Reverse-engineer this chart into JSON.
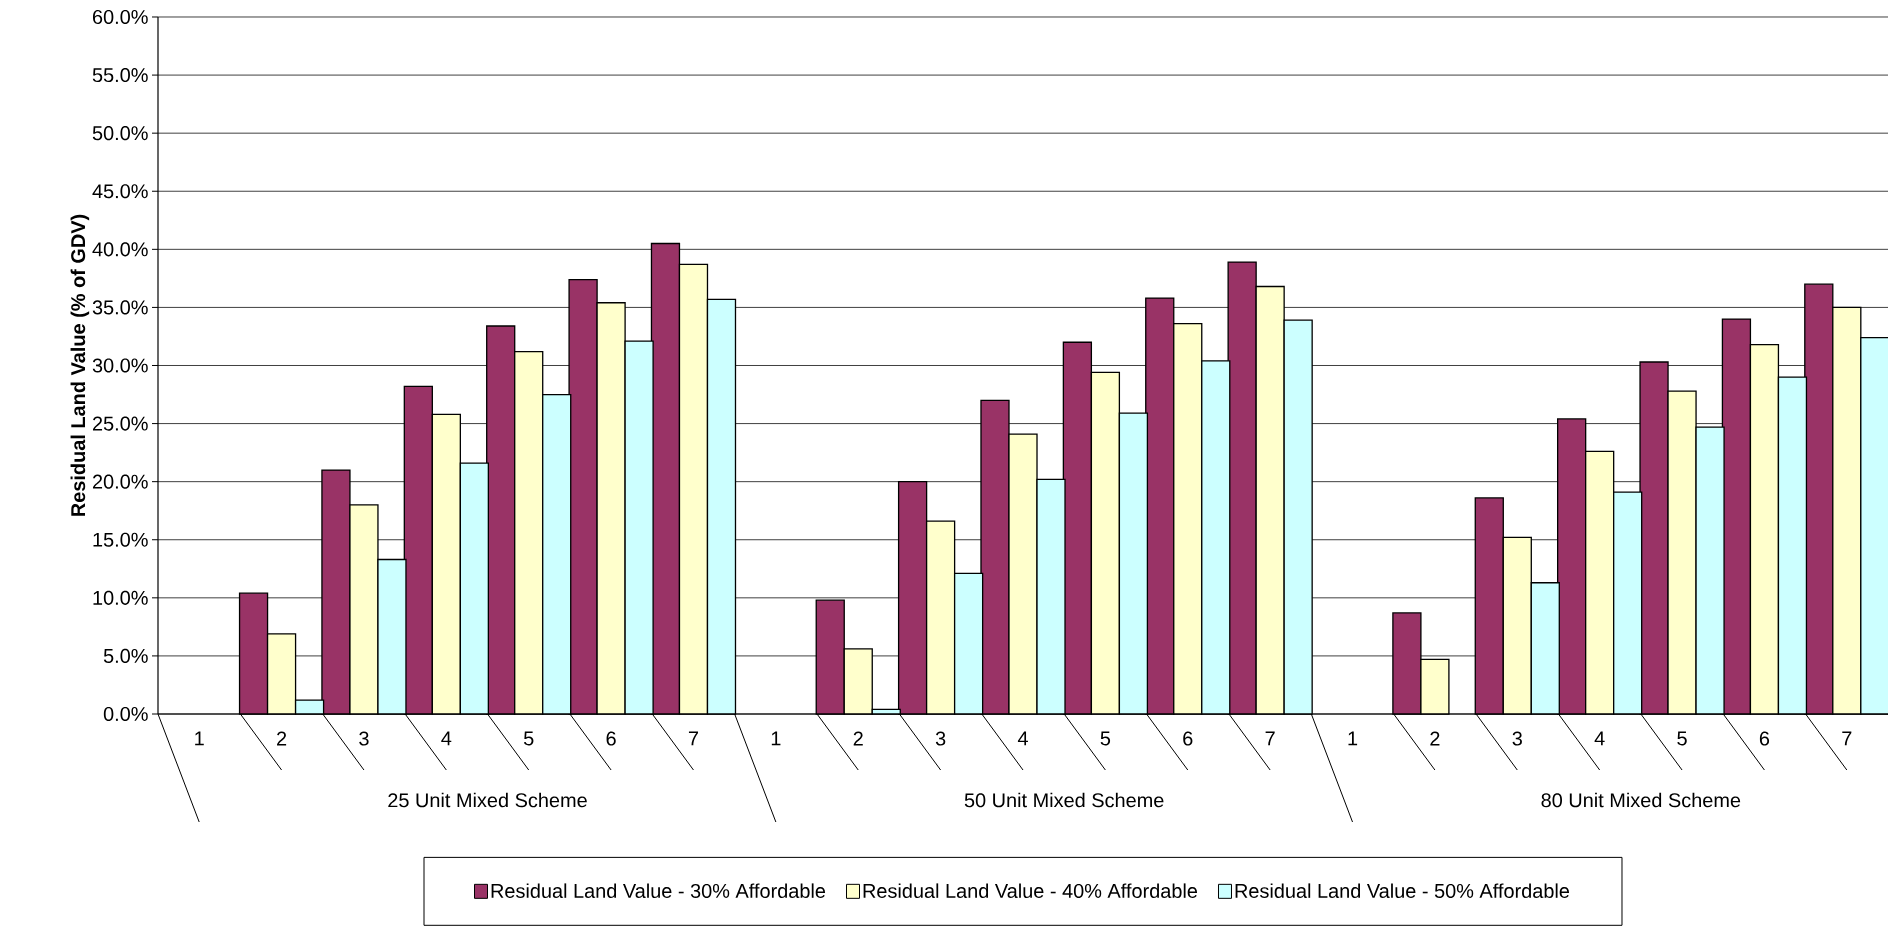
{
  "chart_data": {
    "type": "bar",
    "ylabel": "Residual Land Value (% of GDV)",
    "categories": [
      "1",
      "2",
      "3",
      "4",
      "5",
      "6",
      "7",
      "1",
      "2",
      "3",
      "4",
      "5",
      "6",
      "7",
      "1",
      "2",
      "3",
      "4",
      "5",
      "6",
      "7"
    ],
    "series": [
      {
        "name": "Residual Land Value - 30% Affordable",
        "color": "#993366",
        "values": [
          null,
          10.4,
          21.0,
          28.2,
          33.4,
          37.4,
          40.5,
          null,
          9.8,
          20.0,
          27.0,
          32.0,
          35.8,
          38.9,
          null,
          8.7,
          18.6,
          25.4,
          30.3,
          34.0,
          37.0
        ]
      },
      {
        "name": "Residual Land Value - 40% Affordable",
        "color": "#ffffcc",
        "values": [
          null,
          6.9,
          18.0,
          25.8,
          31.2,
          35.4,
          38.7,
          null,
          5.6,
          16.6,
          24.1,
          29.4,
          33.6,
          36.8,
          null,
          4.7,
          15.2,
          22.6,
          27.8,
          31.8,
          35.0
        ]
      },
      {
        "name": "Residual Land Value - 50% Affordable",
        "color": "#ccffff",
        "values": [
          null,
          1.2,
          13.3,
          21.6,
          27.5,
          32.1,
          35.7,
          null,
          0.4,
          12.1,
          20.2,
          25.9,
          30.4,
          33.9,
          null,
          null,
          11.3,
          19.1,
          24.7,
          29.0,
          32.4
        ]
      }
    ],
    "ylim": [
      0,
      60
    ],
    "yticks": [
      {
        "value": 0,
        "label": "0.0%"
      },
      {
        "value": 5,
        "label": "5.0%"
      },
      {
        "value": 10,
        "label": "10.0%"
      },
      {
        "value": 15,
        "label": "15.0%"
      },
      {
        "value": 20,
        "label": "20.0%"
      },
      {
        "value": 25,
        "label": "25.0%"
      },
      {
        "value": 30,
        "label": "30.0%"
      },
      {
        "value": 35,
        "label": "35.0%"
      },
      {
        "value": 40,
        "label": "40.0%"
      },
      {
        "value": 45,
        "label": "45.0%"
      },
      {
        "value": 50,
        "label": "50.0%"
      },
      {
        "value": 55,
        "label": "55.0%"
      },
      {
        "value": 60,
        "label": "60.0%"
      }
    ],
    "grid": "y",
    "legend": "bottom",
    "annotations": [
      "25 Unit Mixed Scheme",
      "50 Unit Mixed Scheme",
      "80 Unit Mixed Scheme"
    ]
  }
}
